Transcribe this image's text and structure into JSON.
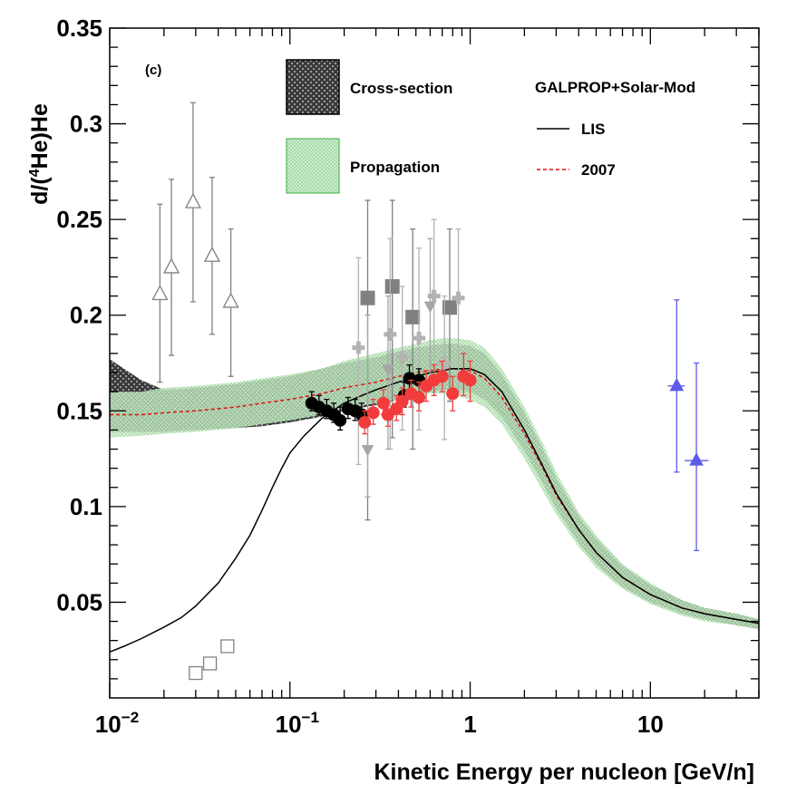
{
  "chart_data": {
    "type": "scatter",
    "panel_label": "(c)",
    "xlabel": "Kinetic Energy per nucleon [GeV/n]",
    "ylabel_prefix": "d/(",
    "ylabel_sup": "4",
    "ylabel_suffix": "He)He",
    "xscale": "log",
    "xlim": [
      0.01,
      40
    ],
    "ylim": [
      0.0,
      0.35
    ],
    "x_ticks": [
      {
        "value": 0.01,
        "base": "10",
        "exp": "−2"
      },
      {
        "value": 0.1,
        "base": "10",
        "exp": "−1"
      },
      {
        "value": 1,
        "base": "1",
        "exp": ""
      },
      {
        "value": 10,
        "base": "10",
        "exp": ""
      }
    ],
    "y_ticks": [
      {
        "value": 0.05,
        "label": "0.05"
      },
      {
        "value": 0.1,
        "label": "0.1"
      },
      {
        "value": 0.15,
        "label": "0.15"
      },
      {
        "value": 0.2,
        "label": "0.2"
      },
      {
        "value": 0.25,
        "label": "0.25"
      },
      {
        "value": 0.3,
        "label": "0.3"
      },
      {
        "value": 0.35,
        "label": "0.35"
      }
    ],
    "legend": {
      "cross_section": "Cross-section",
      "propagation": "Propagation",
      "model_title": "GALPROP+Solar-Mod",
      "lis": "LIS",
      "mod2007": "2007"
    },
    "colors": {
      "cross_section_band": "#2b2b2b",
      "propagation_band": "#9bd39b",
      "lis": "#000000",
      "mod2007": "#e01010",
      "open_triangles": "#808080",
      "open_squares": "#808080",
      "gray_squares": "#808080",
      "light_gray_crosses": "#b3b3b3",
      "gray_triangles": "#a6a6a6",
      "black_circles": "#000000",
      "red_circles": "#f23c3c",
      "blue_triangles": "#5c5ce6"
    },
    "curves": {
      "lis": {
        "x": [
          0.01,
          0.012,
          0.015,
          0.02,
          0.025,
          0.03,
          0.04,
          0.05,
          0.06,
          0.07,
          0.08,
          0.09,
          0.1,
          0.12,
          0.15,
          0.2,
          0.25,
          0.3,
          0.4,
          0.5,
          0.6,
          0.7,
          0.8,
          1.0,
          1.2,
          1.5,
          2.0,
          2.5,
          3.0,
          4.0,
          5.0,
          7.0,
          10,
          15,
          20,
          30,
          40
        ],
        "y": [
          0.024,
          0.027,
          0.031,
          0.037,
          0.042,
          0.048,
          0.06,
          0.073,
          0.085,
          0.098,
          0.11,
          0.12,
          0.128,
          0.137,
          0.146,
          0.154,
          0.158,
          0.161,
          0.165,
          0.168,
          0.17,
          0.171,
          0.172,
          0.172,
          0.169,
          0.16,
          0.14,
          0.122,
          0.107,
          0.088,
          0.076,
          0.063,
          0.054,
          0.047,
          0.044,
          0.041,
          0.039
        ]
      },
      "mod2007": {
        "x": [
          0.01,
          0.015,
          0.02,
          0.03,
          0.05,
          0.07,
          0.1,
          0.15,
          0.2,
          0.3,
          0.4,
          0.5,
          0.6,
          0.7,
          0.8,
          1.0,
          1.2,
          1.5,
          2.0,
          2.5,
          3.0,
          4.0,
          5.0,
          7.0,
          10,
          15,
          20,
          30,
          40
        ],
        "y": [
          0.148,
          0.148,
          0.149,
          0.15,
          0.152,
          0.154,
          0.156,
          0.159,
          0.162,
          0.165,
          0.168,
          0.17,
          0.171,
          0.172,
          0.172,
          0.171,
          0.167,
          0.157,
          0.138,
          0.121,
          0.106,
          0.088,
          0.076,
          0.063,
          0.054,
          0.047,
          0.044,
          0.041,
          0.039
        ]
      }
    },
    "bands": {
      "cross_section": {
        "x": [
          0.01,
          0.012,
          0.015,
          0.02,
          0.03,
          0.05,
          0.07,
          0.1,
          0.15,
          0.2,
          0.3,
          0.4,
          0.5,
          0.6,
          0.7,
          0.8,
          1.0,
          1.2,
          1.5,
          2.0,
          2.5,
          3.0,
          4.0,
          5.0,
          7.0,
          10,
          15,
          20,
          30,
          40
        ],
        "low": [
          0.139,
          0.139,
          0.139,
          0.139,
          0.14,
          0.141,
          0.142,
          0.144,
          0.147,
          0.15,
          0.153,
          0.156,
          0.158,
          0.16,
          0.161,
          0.161,
          0.16,
          0.156,
          0.147,
          0.129,
          0.113,
          0.099,
          0.081,
          0.07,
          0.058,
          0.05,
          0.044,
          0.041,
          0.038,
          0.036
        ],
        "high": [
          0.177,
          0.172,
          0.166,
          0.161,
          0.162,
          0.164,
          0.166,
          0.168,
          0.172,
          0.175,
          0.178,
          0.181,
          0.183,
          0.184,
          0.185,
          0.185,
          0.184,
          0.18,
          0.169,
          0.149,
          0.131,
          0.115,
          0.095,
          0.083,
          0.069,
          0.059,
          0.051,
          0.047,
          0.044,
          0.041
        ]
      },
      "propagation": {
        "x": [
          0.01,
          0.015,
          0.02,
          0.03,
          0.05,
          0.07,
          0.1,
          0.15,
          0.2,
          0.3,
          0.4,
          0.5,
          0.6,
          0.7,
          0.8,
          1.0,
          1.2,
          1.5,
          2.0,
          2.5,
          3.0,
          4.0,
          5.0,
          7.0,
          10,
          15,
          20,
          30,
          40
        ],
        "low": [
          0.136,
          0.137,
          0.138,
          0.139,
          0.141,
          0.143,
          0.145,
          0.148,
          0.151,
          0.154,
          0.156,
          0.158,
          0.159,
          0.159,
          0.158,
          0.156,
          0.152,
          0.143,
          0.125,
          0.109,
          0.096,
          0.079,
          0.068,
          0.057,
          0.049,
          0.043,
          0.04,
          0.038,
          0.036
        ],
        "high": [
          0.16,
          0.16,
          0.162,
          0.163,
          0.165,
          0.167,
          0.169,
          0.172,
          0.176,
          0.18,
          0.183,
          0.185,
          0.187,
          0.188,
          0.188,
          0.187,
          0.183,
          0.172,
          0.152,
          0.134,
          0.118,
          0.097,
          0.085,
          0.07,
          0.06,
          0.051,
          0.047,
          0.044,
          0.041
        ]
      }
    },
    "series": [
      {
        "name": "open-triangles",
        "marker": "triangle-open",
        "color": "#808080",
        "points": [
          [
            0.019,
            0.211,
            0.165,
            0.258
          ],
          [
            0.022,
            0.225,
            0.179,
            0.271
          ],
          [
            0.029,
            0.259,
            0.207,
            0.311
          ],
          [
            0.037,
            0.231,
            0.19,
            0.272
          ],
          [
            0.047,
            0.207,
            0.168,
            0.245
          ]
        ]
      },
      {
        "name": "open-squares",
        "marker": "square-open",
        "color": "#808080",
        "points": [
          [
            0.03,
            0.013,
            null,
            null
          ],
          [
            0.036,
            0.018,
            null,
            null
          ],
          [
            0.045,
            0.027,
            null,
            null
          ]
        ]
      },
      {
        "name": "gray-squares",
        "marker": "square",
        "color": "#808080",
        "points": [
          [
            0.27,
            0.209,
            0.093,
            0.26
          ],
          [
            0.37,
            0.215,
            0.136,
            0.26
          ],
          [
            0.48,
            0.199,
            0.13,
            0.245
          ],
          [
            0.77,
            0.204,
            0.155,
            0.245
          ]
        ]
      },
      {
        "name": "light-gray-crosses",
        "marker": "cross",
        "color": "#b3b3b3",
        "points": [
          [
            0.24,
            0.183,
            0.122,
            0.23
          ],
          [
            0.36,
            0.19,
            0.13,
            0.24
          ],
          [
            0.52,
            0.188,
            0.14,
            0.235
          ],
          [
            0.63,
            0.21,
            0.16,
            0.25
          ],
          [
            0.86,
            0.209,
            0.16,
            0.245
          ],
          [
            0.72,
            0.175,
            0.135,
            0.21
          ],
          [
            0.42,
            0.178,
            0.14,
            0.215
          ]
        ]
      },
      {
        "name": "gray-triangles",
        "marker": "triangle-down",
        "color": "#a6a6a6",
        "points": [
          [
            0.27,
            0.13,
            0.105,
            0.2
          ],
          [
            0.35,
            0.172,
            0.13,
            0.21
          ],
          [
            0.6,
            0.205,
            0.165,
            0.24
          ]
        ]
      },
      {
        "name": "black-circles",
        "marker": "circle",
        "color": "#000000",
        "points": [
          [
            0.132,
            0.154,
            0.15,
            0.16
          ],
          [
            0.145,
            0.152,
            0.148,
            0.158
          ],
          [
            0.16,
            0.15,
            0.146,
            0.156
          ],
          [
            0.175,
            0.148,
            0.144,
            0.154
          ],
          [
            0.19,
            0.145,
            0.14,
            0.152
          ],
          [
            0.21,
            0.151,
            0.146,
            0.157
          ],
          [
            0.23,
            0.15,
            0.145,
            0.156
          ],
          [
            0.25,
            0.148,
            0.143,
            0.154
          ],
          [
            0.43,
            0.158,
            0.152,
            0.165
          ],
          [
            0.46,
            0.167,
            0.161,
            0.174
          ],
          [
            0.52,
            0.166,
            0.16,
            0.172
          ]
        ]
      },
      {
        "name": "red-circles",
        "marker": "circle",
        "color": "#f23c3c",
        "points": [
          [
            0.26,
            0.144,
            0.138,
            0.15
          ],
          [
            0.29,
            0.149,
            0.143,
            0.156
          ],
          [
            0.33,
            0.154,
            0.148,
            0.161
          ],
          [
            0.35,
            0.148,
            0.142,
            0.155
          ],
          [
            0.39,
            0.151,
            0.145,
            0.158
          ],
          [
            0.42,
            0.155,
            0.148,
            0.162
          ],
          [
            0.47,
            0.159,
            0.152,
            0.166
          ],
          [
            0.52,
            0.157,
            0.15,
            0.165
          ],
          [
            0.57,
            0.163,
            0.155,
            0.171
          ],
          [
            0.63,
            0.166,
            0.158,
            0.174
          ],
          [
            0.7,
            0.168,
            0.16,
            0.176
          ],
          [
            0.8,
            0.159,
            0.15,
            0.168
          ],
          [
            0.92,
            0.168,
            0.158,
            0.18
          ],
          [
            1.0,
            0.166,
            0.155,
            0.176
          ]
        ]
      },
      {
        "name": "blue-triangles",
        "marker": "triangle",
        "color": "#5c5ce6",
        "points": [
          [
            14,
            0.163,
            0.118,
            0.208,
            12.5,
            15.5
          ],
          [
            18,
            0.124,
            0.077,
            0.175,
            15.5,
            21
          ]
        ]
      }
    ]
  }
}
